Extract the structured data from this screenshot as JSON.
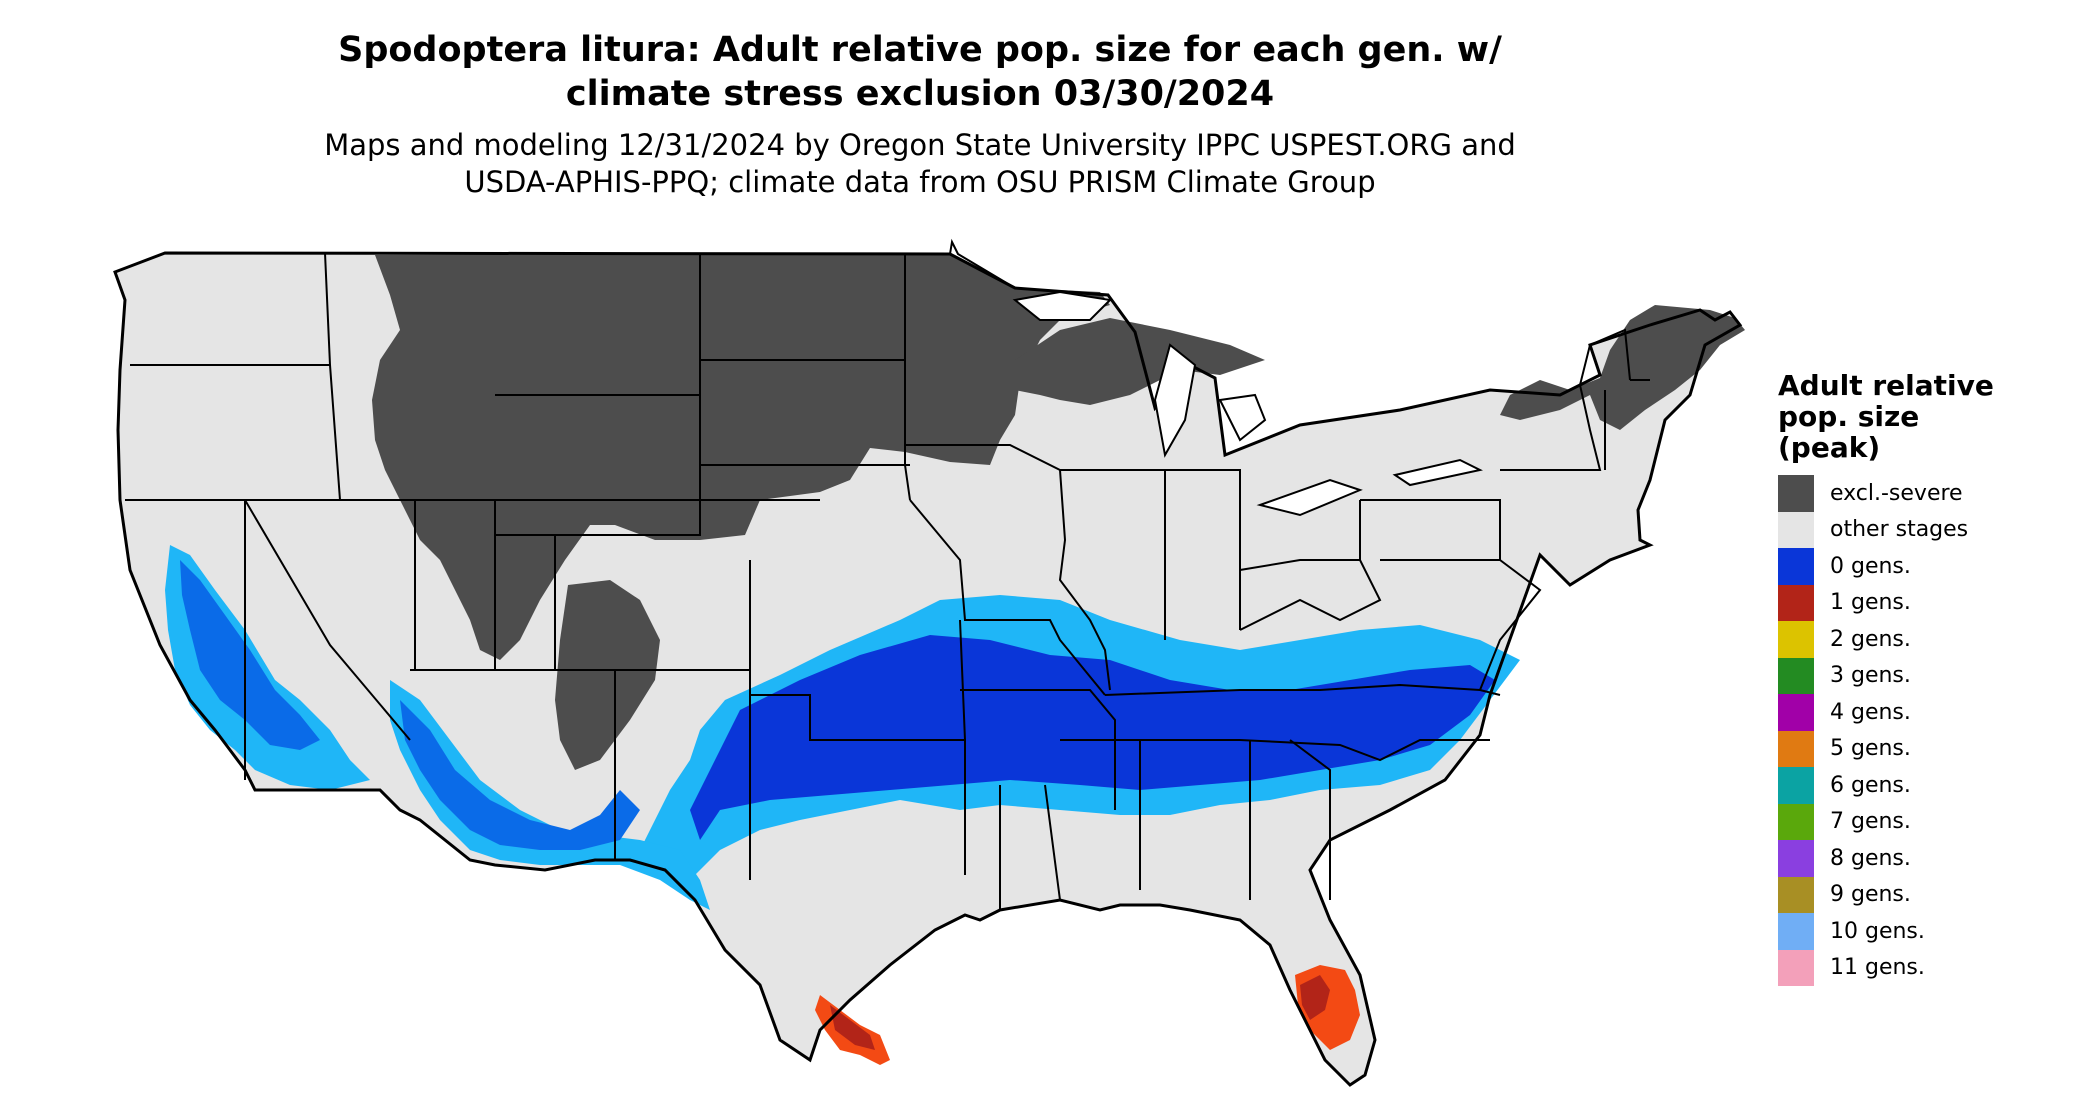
{
  "title_line1": "Spodoptera litura: Adult relative pop. size for each gen. w/",
  "title_line2": "climate stress exclusion 03/30/2024",
  "subtitle_line1": "Maps and modeling 12/31/2024 by Oregon State University IPPC USPEST.ORG and",
  "subtitle_line2": "USDA-APHIS-PPQ; climate data from OSU PRISM Climate Group",
  "legend": {
    "title_lines": [
      "Adult relative",
      "pop. size",
      "(peak)"
    ],
    "items": [
      {
        "label": "excl.-severe",
        "color": "#4d4d4d"
      },
      {
        "label": "other stages",
        "color": "#e5e5e5"
      },
      {
        "label": "0 gens.",
        "color": "#0a36d8"
      },
      {
        "label": "1 gens.",
        "color": "#b22418"
      },
      {
        "label": "2 gens.",
        "color": "#dcc300"
      },
      {
        "label": "3 gens.",
        "color": "#238b22"
      },
      {
        "label": "4 gens.",
        "color": "#a100a8"
      },
      {
        "label": "5 gens.",
        "color": "#e07a12"
      },
      {
        "label": "6 gens.",
        "color": "#0ba3a3"
      },
      {
        "label": "7 gens.",
        "color": "#5aa80c"
      },
      {
        "label": "8 gens.",
        "color": "#8a3fe0"
      },
      {
        "label": "9 gens.",
        "color": "#a88f24"
      },
      {
        "label": "10 gens.",
        "color": "#70aef5"
      },
      {
        "label": "11 gens.",
        "color": "#f3a0ba"
      }
    ]
  },
  "colors": {
    "light_blue": "#1fb6f7",
    "mid_blue": "#0a6be8",
    "orange_red": "#f34a14"
  }
}
